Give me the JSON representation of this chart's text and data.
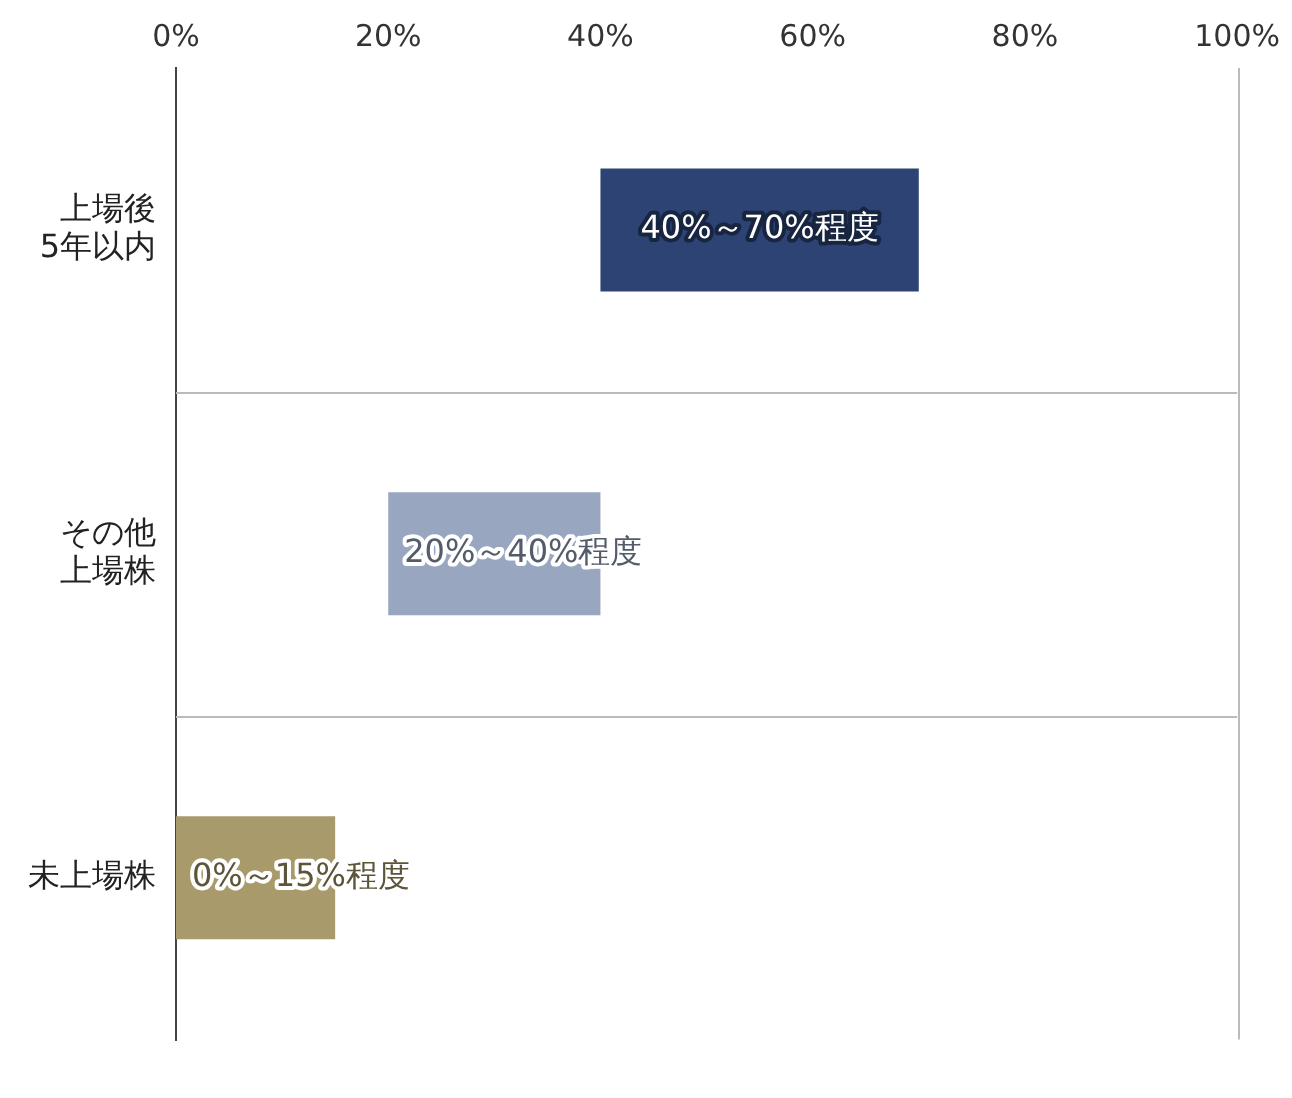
{
  "chart_data": {
    "type": "bar",
    "orientation": "horizontal",
    "categories": [
      "上場後5年以内",
      "その他上場株",
      "未上場株"
    ],
    "values": [
      30,
      20,
      15
    ],
    "base": [
      40,
      20,
      0
    ],
    "colors": [
      "#2c4374",
      "#98a6c0",
      "#a89a6a"
    ],
    "annotations": [
      "40%～70%程度",
      "20%～40%程度",
      "0%～15%程度"
    ],
    "xlim": [
      0,
      100
    ],
    "xticks": [
      {
        "value": 0,
        "label": "0%"
      },
      {
        "value": 20,
        "label": "20%"
      },
      {
        "value": 40,
        "label": "40%"
      },
      {
        "value": 60,
        "label": "60%"
      },
      {
        "value": 80,
        "label": "80%"
      },
      {
        "value": 100,
        "label": "100%"
      }
    ],
    "grid": false,
    "legend": false
  }
}
